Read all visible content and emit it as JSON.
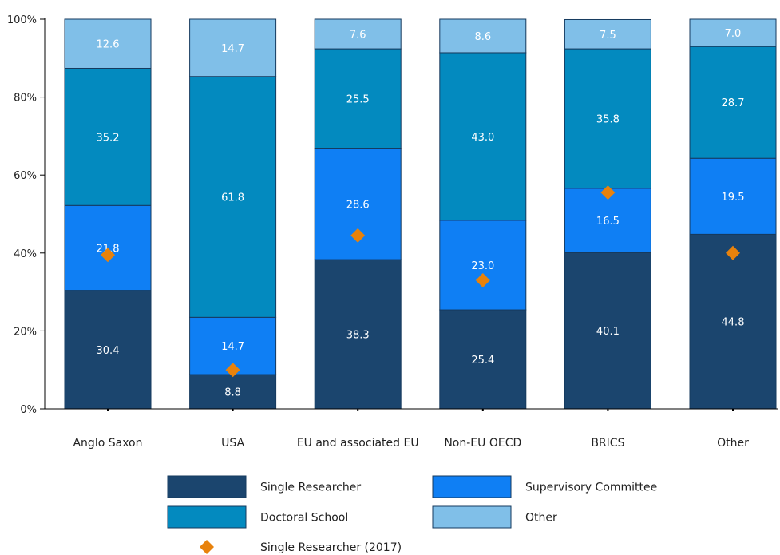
{
  "chart_data": {
    "type": "bar",
    "stacked": true,
    "normalized_percent": true,
    "categories": [
      "Anglo Saxon",
      "USA",
      "EU and associated EU",
      "Non-EU OECD",
      "BRICS",
      "Other"
    ],
    "series": [
      {
        "name": "Single Researcher",
        "color": "#1b456e",
        "values": [
          30.4,
          8.8,
          38.3,
          25.4,
          40.1,
          44.8
        ]
      },
      {
        "name": "Supervisory Committee",
        "color": "#0f7ff4",
        "values": [
          21.8,
          14.7,
          28.6,
          23.0,
          16.5,
          19.5
        ]
      },
      {
        "name": "Doctoral School",
        "color": "#038abf",
        "values": [
          35.2,
          61.8,
          25.5,
          43.0,
          35.8,
          28.7
        ]
      },
      {
        "name": "Other",
        "color": "#80bfe8",
        "values": [
          12.6,
          14.7,
          7.6,
          8.6,
          7.5,
          7.0
        ]
      }
    ],
    "markers": {
      "name": "Single Researcher (2017)",
      "color": "#e8820c",
      "shape": "diamond",
      "values": [
        39.5,
        10.0,
        44.5,
        33.0,
        55.5,
        40.0
      ]
    },
    "ylim": [
      0,
      100
    ],
    "yticks": [
      0,
      20,
      40,
      60,
      80,
      100
    ],
    "ytick_labels": [
      "0%",
      "20%",
      "40%",
      "60%",
      "80%",
      "100%"
    ],
    "title": "",
    "xlabel": "",
    "ylabel": "",
    "grid": false,
    "legend_position": "bottom"
  }
}
